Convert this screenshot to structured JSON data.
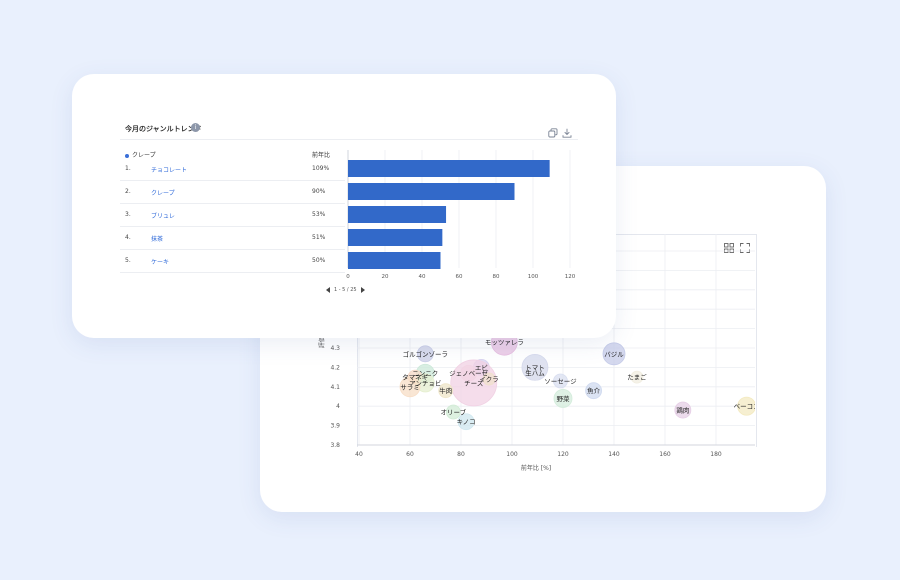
{
  "trend_card": {
    "title": "今月のジャンルトレンド",
    "info_icon": "i",
    "icons": [
      "copy-icon",
      "download-icon"
    ],
    "header_genre": "クレープ",
    "header_yoy": "前年比",
    "rows": [
      {
        "rank": "1.",
        "name": "チョコレート",
        "yoy": "109%"
      },
      {
        "rank": "2.",
        "name": "クレープ",
        "yoy": "90%"
      },
      {
        "rank": "3.",
        "name": "ブリュレ",
        "yoy": "53%"
      },
      {
        "rank": "4.",
        "name": "抹茶",
        "yoy": "51%"
      },
      {
        "rank": "5.",
        "name": "ケーキ",
        "yoy": "50%"
      }
    ],
    "pagination": "1 - 5 / 25",
    "accent_color": "#2f6ad9"
  },
  "chart_data": [
    {
      "type": "bar",
      "orientation": "horizontal",
      "categories": [
        "チョコレート",
        "クレープ",
        "ブリュレ",
        "抹茶",
        "ケーキ"
      ],
      "values": [
        109,
        90,
        53,
        51,
        50
      ],
      "xlim": [
        0,
        120
      ],
      "xticks": [
        "0",
        "20",
        "40",
        "60",
        "80",
        "100",
        "120"
      ],
      "grid": true,
      "color": "#3269c9"
    },
    {
      "type": "scatter",
      "xlabel": "前年比 [%]",
      "ylabel": "評価",
      "xlim": [
        35,
        195
      ],
      "ylim": [
        3.8,
        4.8
      ],
      "xticks": [
        "40",
        "60",
        "80",
        "100",
        "120",
        "140",
        "160",
        "180"
      ],
      "yticks": [
        "3.8",
        "3.9",
        "4",
        "4.1",
        "4.2",
        "4.3"
      ],
      "grid": true,
      "points": [
        {
          "label": "モッツァレラ",
          "x": 97,
          "y": 4.33,
          "size": 1.0,
          "color": "#e6bfe0"
        },
        {
          "label": "バジル",
          "x": 140,
          "y": 4.27,
          "size": 0.8,
          "color": "#c5cbe8"
        },
        {
          "label": "ゴルゴンゾーラ",
          "x": 66,
          "y": 4.27,
          "size": 0.5,
          "color": "#c9cde6"
        },
        {
          "label": "エビ",
          "x": 88,
          "y": 4.2,
          "size": 0.5,
          "color": "#d8d2ef"
        },
        {
          "label": "トマト",
          "x": 109,
          "y": 4.2,
          "size": 1.0,
          "color": "#d5d9ec"
        },
        {
          "label": "生ハム",
          "x": 109,
          "y": 4.17,
          "size": 0.4,
          "color": "#dde0ee"
        },
        {
          "label": "ジェノベーゼ",
          "x": 83,
          "y": 4.17,
          "size": 0.5,
          "color": "#f3d9df"
        },
        {
          "label": "ニンニク",
          "x": 66,
          "y": 4.17,
          "size": 0.6,
          "color": "#cbe8d8"
        },
        {
          "label": "タマネギ",
          "x": 62,
          "y": 4.15,
          "size": 0.4,
          "color": "#f5d8c6"
        },
        {
          "label": "アンチョビ",
          "x": 66,
          "y": 4.12,
          "size": 0.6,
          "color": "#e6efd0"
        },
        {
          "label": "サラミ",
          "x": 60,
          "y": 4.1,
          "size": 0.7,
          "color": "#f7ddc6"
        },
        {
          "label": "チーズ",
          "x": 85,
          "y": 4.12,
          "size": 2.0,
          "color": "#f1d2e4"
        },
        {
          "label": "イクラ",
          "x": 91,
          "y": 4.14,
          "size": 0.3,
          "color": "#efe0cc"
        },
        {
          "label": "牛肉",
          "x": 74,
          "y": 4.08,
          "size": 0.4,
          "color": "#efe6c8"
        },
        {
          "label": "ソーセージ",
          "x": 119,
          "y": 4.13,
          "size": 0.4,
          "color": "#d9dff0"
        },
        {
          "label": "たまご",
          "x": 149,
          "y": 4.15,
          "size": 0.3,
          "color": "#f1ede0"
        },
        {
          "label": "魚介",
          "x": 132,
          "y": 4.08,
          "size": 0.5,
          "color": "#cfd9ef"
        },
        {
          "label": "野菜",
          "x": 120,
          "y": 4.04,
          "size": 0.6,
          "color": "#d4ecdc"
        },
        {
          "label": "オリーブ",
          "x": 77,
          "y": 3.97,
          "size": 0.4,
          "color": "#d1ebd5"
        },
        {
          "label": "キノコ",
          "x": 82,
          "y": 3.92,
          "size": 0.5,
          "color": "#cfe7ef"
        },
        {
          "label": "鶏肉",
          "x": 167,
          "y": 3.98,
          "size": 0.5,
          "color": "#e6cfe6"
        },
        {
          "label": "ベーコン",
          "x": 192,
          "y": 4.0,
          "size": 0.6,
          "color": "#f3eac1"
        }
      ]
    }
  ]
}
